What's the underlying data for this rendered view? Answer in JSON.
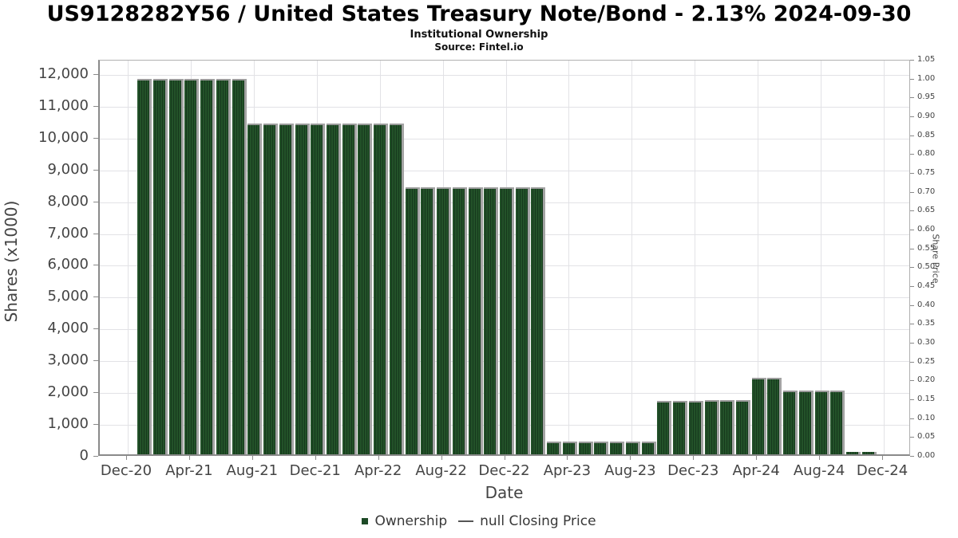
{
  "chart_data": {
    "type": "bar",
    "title": "US9128282Y56 / United States Treasury Note/Bond - 2.13% 2024-09-30",
    "subtitle": "Institutional Ownership",
    "source": "Source: Fintel.io",
    "xlabel": "Date",
    "ylabel": "Shares (x1000)",
    "ylabel_right": "Share Price",
    "ylim": [
      0,
      12450
    ],
    "ylim_right": [
      0,
      1.05
    ],
    "grid": true,
    "legend_position": "bottom",
    "bar_color": "#1e4a26",
    "shadow_color": "#a3a3a3",
    "categories": [
      "Jan-21",
      "Feb-21",
      "Mar-21",
      "Apr-21",
      "May-21",
      "Jun-21",
      "Jul-21",
      "Aug-21",
      "Sep-21",
      "Oct-21",
      "Nov-21",
      "Dec-21",
      "Jan-22",
      "Feb-22",
      "Mar-22",
      "Apr-22",
      "May-22",
      "Jun-22",
      "Jul-22",
      "Aug-22",
      "Sep-22",
      "Oct-22",
      "Nov-22",
      "Dec-22",
      "Jan-23",
      "Feb-23",
      "Mar-23",
      "Apr-23",
      "May-23",
      "Jun-23",
      "Jul-23",
      "Aug-23",
      "Sep-23",
      "Oct-23",
      "Nov-23",
      "Dec-23",
      "Jan-24",
      "Feb-24",
      "Mar-24",
      "Apr-24",
      "May-24",
      "Jun-24",
      "Jul-24",
      "Aug-24",
      "Sep-24",
      "Oct-24",
      "Nov-24"
    ],
    "series": [
      {
        "name": "Ownership",
        "type": "bar",
        "values": [
          11800,
          11800,
          11800,
          11800,
          11800,
          11800,
          11800,
          10400,
          10400,
          10400,
          10400,
          10400,
          10400,
          10400,
          10400,
          10400,
          10400,
          8400,
          8400,
          8400,
          8400,
          8400,
          8400,
          8400,
          8400,
          8400,
          400,
          400,
          400,
          400,
          400,
          400,
          400,
          1670,
          1670,
          1670,
          1700,
          1700,
          1700,
          2400,
          2400,
          2000,
          2000,
          2000,
          2000,
          75,
          75
        ]
      },
      {
        "name": "null Closing Price",
        "type": "line",
        "values": null
      }
    ],
    "x_tick_labels": [
      "Dec-20",
      "Apr-21",
      "Aug-21",
      "Dec-21",
      "Apr-22",
      "Aug-22",
      "Dec-22",
      "Apr-23",
      "Aug-23",
      "Dec-23",
      "Apr-24",
      "Aug-24",
      "Dec-24"
    ],
    "y_tick_labels_left": [
      "0",
      "1,000",
      "2,000",
      "3,000",
      "4,000",
      "5,000",
      "6,000",
      "7,000",
      "8,000",
      "9,000",
      "10,000",
      "11,000",
      "12,000"
    ],
    "y_tick_labels_right": [
      "0.00",
      "0.05",
      "0.10",
      "0.15",
      "0.20",
      "0.25",
      "0.30",
      "0.35",
      "0.40",
      "0.45",
      "0.50",
      "0.55",
      "0.60",
      "0.65",
      "0.70",
      "0.75",
      "0.80",
      "0.85",
      "0.90",
      "0.95",
      "1.00",
      "1.05"
    ]
  }
}
